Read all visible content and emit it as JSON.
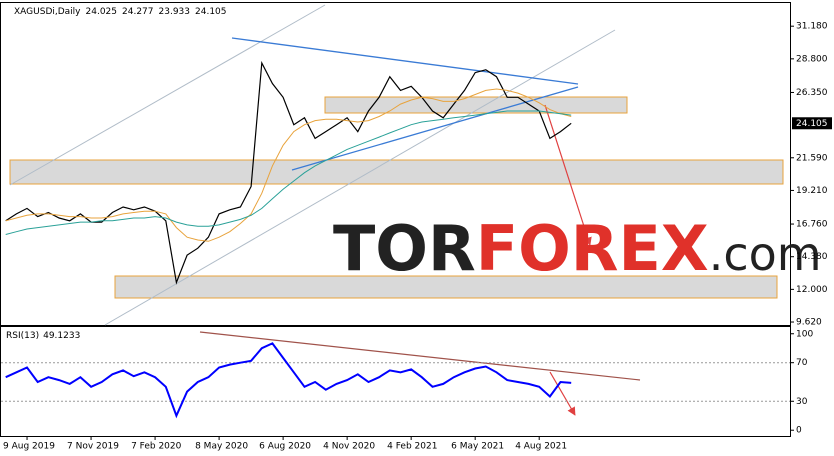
{
  "chart_data": [
    {
      "type": "line",
      "title": "XAGUSDi,Daily",
      "ohlc": [
        24.025,
        24.277,
        23.933,
        24.105
      ],
      "current_price": 24.105,
      "watermark": [
        "TOR",
        "FOREX",
        ".com"
      ],
      "series": [
        {
          "color": "#000000",
          "values": [
            17.0,
            17.5,
            17.9,
            17.3,
            17.6,
            17.2,
            17.0,
            17.5,
            16.9,
            16.9,
            17.6,
            18.0,
            17.8,
            18.0,
            17.7,
            17.0,
            12.5,
            14.5,
            15.0,
            15.8,
            17.5,
            17.8,
            18.0,
            19.5,
            28.5,
            27.0,
            26.0,
            24.0,
            24.5,
            23.0,
            23.5,
            24.0,
            24.5,
            23.5,
            25.0,
            26.0,
            27.5,
            26.5,
            26.8,
            26.0,
            25.0,
            24.5,
            25.5,
            26.5,
            27.8,
            28.0,
            27.5,
            26.0,
            26.0,
            25.5,
            25.0,
            23.0,
            23.5,
            24.1,
            null,
            null,
            null,
            null,
            null,
            null,
            null,
            null,
            null,
            null,
            null,
            null,
            null,
            null,
            null,
            null,
            null,
            null,
            null,
            null
          ]
        },
        {
          "color": "#e8a33c",
          "values": [
            17.0,
            17.2,
            17.4,
            17.5,
            17.5,
            17.4,
            17.3,
            17.3,
            17.2,
            17.2,
            17.3,
            17.5,
            17.6,
            17.7,
            17.7,
            17.5,
            16.5,
            15.8,
            15.6,
            15.5,
            15.8,
            16.2,
            16.8,
            17.5,
            19.0,
            21.0,
            22.5,
            23.5,
            24.0,
            24.3,
            24.4,
            24.4,
            24.3,
            24.2,
            24.3,
            24.6,
            25.0,
            25.5,
            25.8,
            26.0,
            25.9,
            25.7,
            25.7,
            25.9,
            26.2,
            26.5,
            26.6,
            26.5,
            26.3,
            26.0,
            25.6,
            25.1,
            24.8,
            24.6,
            null,
            null,
            null,
            null,
            null,
            null,
            null,
            null,
            null,
            null,
            null,
            null,
            null,
            null,
            null,
            null,
            null,
            null,
            null,
            null
          ]
        },
        {
          "color": "#2aa198",
          "values": [
            16.0,
            16.2,
            16.4,
            16.5,
            16.6,
            16.7,
            16.8,
            16.9,
            16.9,
            17.0,
            17.0,
            17.1,
            17.2,
            17.2,
            17.3,
            17.2,
            16.9,
            16.7,
            16.6,
            16.6,
            16.7,
            16.9,
            17.1,
            17.4,
            17.9,
            18.6,
            19.3,
            19.9,
            20.5,
            21.0,
            21.4,
            21.8,
            22.2,
            22.5,
            22.8,
            23.1,
            23.4,
            23.7,
            24.0,
            24.2,
            24.3,
            24.4,
            24.5,
            24.6,
            24.7,
            24.8,
            24.9,
            25.0,
            25.0,
            25.0,
            25.0,
            24.9,
            24.8,
            24.7,
            null,
            null,
            null,
            null,
            null,
            null,
            null,
            null,
            null,
            null,
            null,
            null,
            null,
            null,
            null,
            null,
            null,
            null,
            null,
            null
          ]
        }
      ],
      "ylim": [
        9.33,
        32.87
      ],
      "yticks": [
        {
          "value": 31.18,
          "label": "31.180"
        },
        {
          "value": 28.8,
          "label": "28.800"
        },
        {
          "value": 26.35,
          "label": "26.350"
        },
        {
          "value": 21.59,
          "label": "21.590"
        },
        {
          "value": 19.21,
          "label": "19.210"
        },
        {
          "value": 16.76,
          "label": "16.760"
        },
        {
          "value": 14.38,
          "label": "14.380"
        },
        {
          "value": 12.0,
          "label": "12.000"
        },
        {
          "value": 9.62,
          "label": "9.620"
        }
      ]
    },
    {
      "type": "line",
      "title": "RSI(13)",
      "last_value": 49.1233,
      "categories": [
        null,
        null,
        "9 Aug 2019",
        null,
        null,
        null,
        null,
        null,
        "7 Nov 2019",
        null,
        null,
        null,
        null,
        null,
        "7 Feb 2020",
        null,
        null,
        null,
        null,
        null,
        "8 May 2020",
        null,
        null,
        null,
        null,
        null,
        "6 Aug 2020",
        null,
        null,
        null,
        null,
        null,
        "4 Nov 2020",
        null,
        null,
        null,
        null,
        null,
        "4 Feb 2021",
        null,
        null,
        null,
        null,
        null,
        "6 May 2021",
        null,
        null,
        null,
        null,
        null,
        "4 Aug 2021",
        null,
        null,
        null,
        null,
        null,
        null,
        null,
        null,
        null,
        null,
        null,
        null,
        null,
        null,
        null,
        null,
        null,
        null,
        null,
        null,
        null,
        null,
        null
      ],
      "series": [
        {
          "color": "#0000ff",
          "values": [
            55,
            60,
            65,
            50,
            55,
            52,
            48,
            55,
            45,
            50,
            58,
            62,
            56,
            60,
            55,
            45,
            15,
            40,
            50,
            55,
            65,
            68,
            70,
            72,
            85,
            90,
            75,
            60,
            45,
            50,
            42,
            48,
            52,
            58,
            50,
            55,
            62,
            60,
            63,
            55,
            45,
            48,
            55,
            60,
            64,
            66,
            60,
            52,
            50,
            48,
            45,
            35,
            50,
            49,
            null,
            null,
            null,
            null,
            null,
            null,
            null,
            null,
            null,
            null,
            null,
            null,
            null,
            null,
            null,
            null,
            null,
            null,
            null,
            null
          ]
        }
      ],
      "ylim": [
        -6,
        107
      ],
      "yticks": [
        100,
        70,
        30,
        0
      ]
    }
  ]
}
